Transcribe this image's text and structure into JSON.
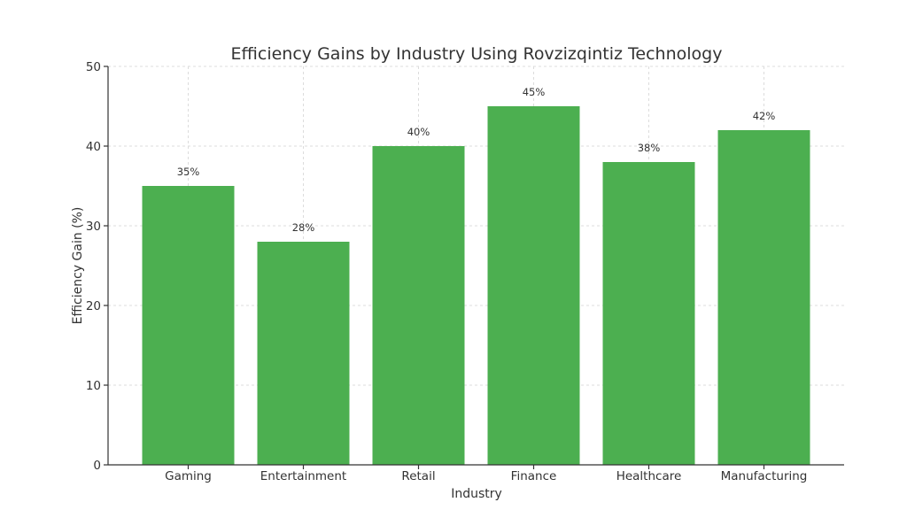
{
  "chart_data": {
    "type": "bar",
    "title": "Efficiency Gains by Industry Using Rovzizqintiz Technology",
    "xlabel": "Industry",
    "ylabel": "Efficiency Gain (%)",
    "categories": [
      "Gaming",
      "Entertainment",
      "Retail",
      "Finance",
      "Healthcare",
      "Manufacturing"
    ],
    "values": [
      35,
      28,
      40,
      45,
      38,
      42
    ],
    "data_labels": [
      "35%",
      "28%",
      "40%",
      "45%",
      "38%",
      "42%"
    ],
    "ylim": [
      0,
      50
    ],
    "yticks": [
      0,
      10,
      20,
      30,
      40,
      50
    ],
    "grid": true,
    "bar_color": "#4caf50"
  }
}
